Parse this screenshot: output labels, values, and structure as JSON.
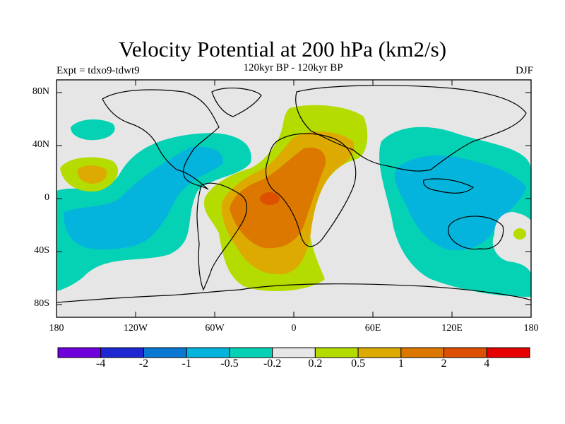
{
  "title": "Velocity Potential at 200 hPa (km2/s)",
  "subtitle": "120kyr BP - 120kyr BP",
  "experiment": "Expt = tdxo9-tdwt9",
  "season": "DJF",
  "lat_labels": [
    "80N",
    "40N",
    "0",
    "40S",
    "80S"
  ],
  "lon_labels": [
    "180",
    "120W",
    "60W",
    "0",
    "60E",
    "120E",
    "180"
  ],
  "colorbar": {
    "colors": [
      "#6e00dc",
      "#1e28d2",
      "#0a78d2",
      "#05b4dc",
      "#05d2b4",
      "#e6e6e6",
      "#b4dc00",
      "#dcaa00",
      "#dc7800",
      "#dc5000",
      "#e60000"
    ],
    "labels": [
      "-4",
      "-2",
      "-1",
      "-0.5",
      "-0.2",
      "0.2",
      "0.5",
      "1",
      "2",
      "4"
    ]
  }
}
